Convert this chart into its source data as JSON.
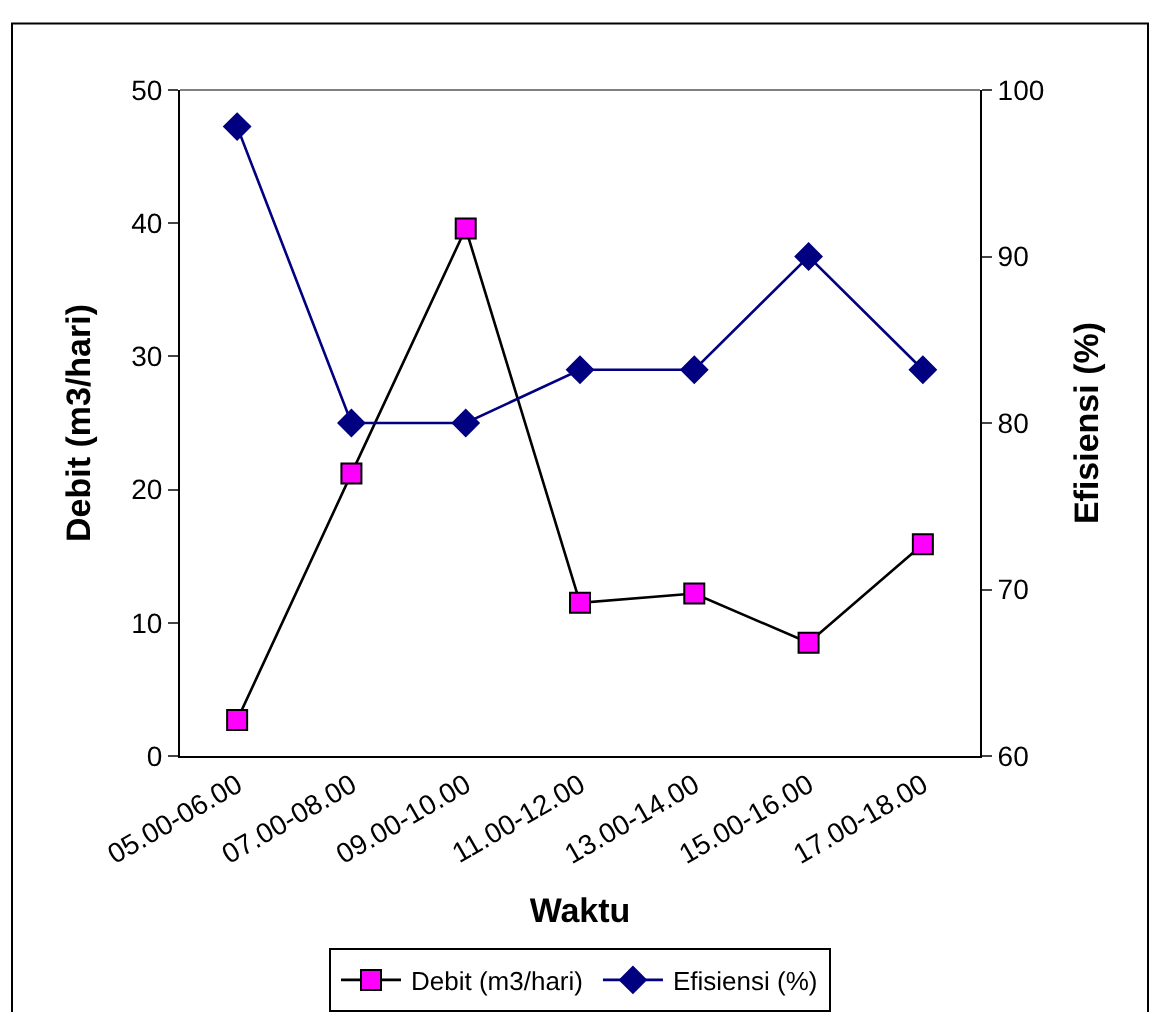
{
  "chart_data": {
    "type": "line",
    "xlabel": "Waktu",
    "ylabel": "Debit (m3/hari)",
    "y2label": "Efisiensi (%)",
    "categories": [
      "05.00-06.00",
      "07.00-08.00",
      "09.00-10.00",
      "11.00-12.00",
      "13.00-14.00",
      "15.00-16.00",
      "17.00-18.00"
    ],
    "series": [
      {
        "name": "Debit (m3/hari)",
        "color": "#000000",
        "marker": "square",
        "colors": [
          "#ff00ff",
          "#ff00ff",
          "#ff00ff",
          "#ff00ff",
          "#ff00ff",
          "#ff00ff",
          "#ff00ff"
        ],
        "values": [
          2.7,
          21.2,
          39.6,
          11.5,
          12.2,
          8.5,
          15.9
        ]
      },
      {
        "name": "Efisiensi (%)",
        "color": "#000080",
        "marker": "diamond",
        "axis": "y2",
        "values": [
          97.8,
          80,
          80,
          83.2,
          83.2,
          90,
          83.2
        ]
      }
    ],
    "ylim": [
      0,
      50
    ],
    "yticks": [
      0,
      10,
      20,
      30,
      40,
      50
    ],
    "y2lim": [
      60,
      100
    ],
    "y2ticks": [
      60,
      70,
      80,
      90,
      100
    ],
    "grid": false,
    "legend": "bottom",
    "line_style": "solid"
  }
}
